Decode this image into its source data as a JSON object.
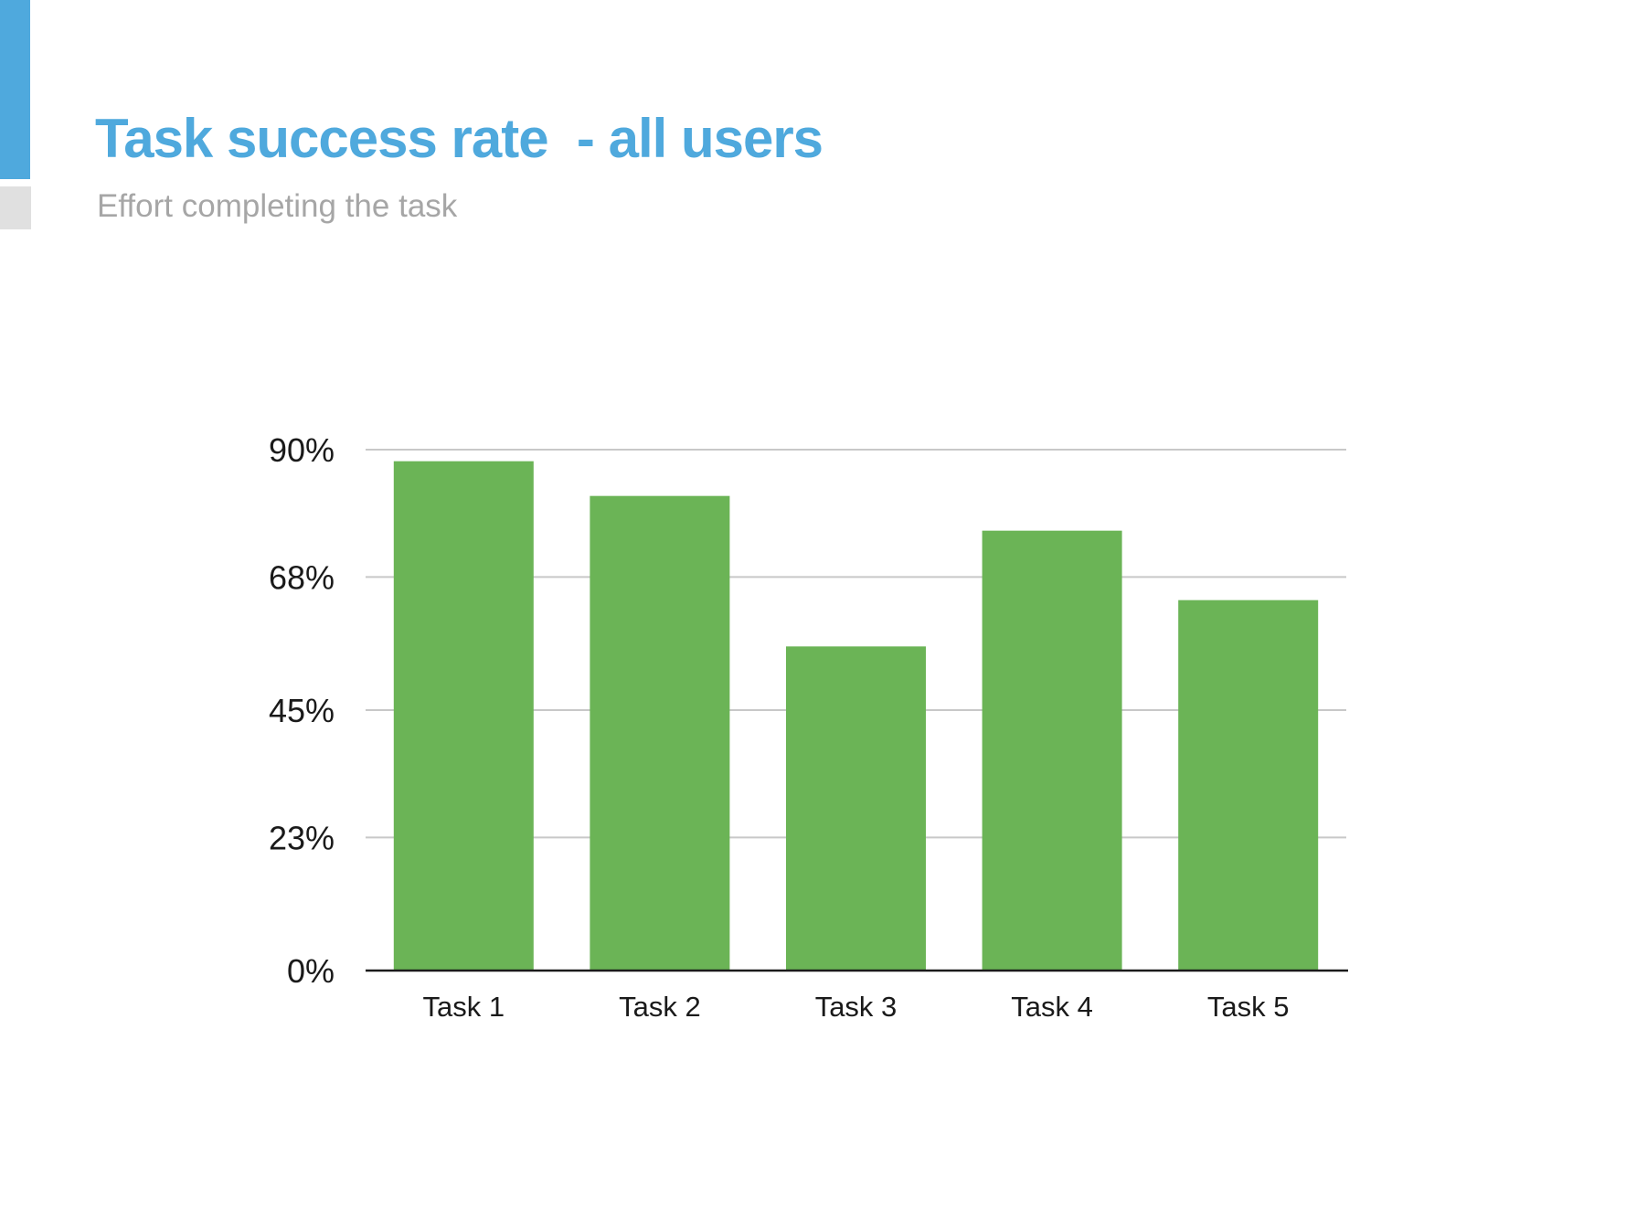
{
  "slide": {
    "title": "Task success rate  - all users",
    "subtitle": "Effort completing the task"
  },
  "colors": {
    "accent": "#4fa9dd",
    "bar": "#6bb456",
    "gridline": "#c8c8c8",
    "axis": "#1a1a1a",
    "subtitle": "#a6a6a6",
    "accent_secondary": "#e0e0e0"
  },
  "chart_data": {
    "type": "bar",
    "categories": [
      "Task 1",
      "Task 2",
      "Task 3",
      "Task 4",
      "Task 5"
    ],
    "values": [
      88,
      82,
      56,
      76,
      64
    ],
    "yticks": [
      0,
      23,
      45,
      68,
      90
    ],
    "ytick_labels": [
      "0%",
      "23%",
      "45%",
      "68%",
      "90%"
    ],
    "ylim": [
      0,
      90
    ],
    "grid": true,
    "legend": "none"
  }
}
